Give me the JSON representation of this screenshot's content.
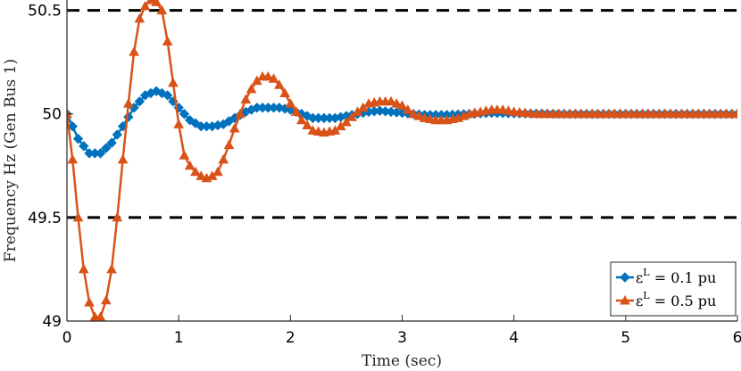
{
  "chart_data": {
    "type": "line",
    "title": "",
    "xlabel": "Time (sec)",
    "ylabel": "Frequency Hz (Gen Bus 1)",
    "xlim": [
      0,
      6
    ],
    "ylim": [
      49,
      50.55
    ],
    "xticks": [
      0,
      1,
      2,
      3,
      4,
      5,
      6
    ],
    "xtick_labels": [
      "0",
      "1",
      "2",
      "3",
      "4",
      "5",
      "6"
    ],
    "yticks": [
      49,
      49.5,
      50,
      50.5
    ],
    "ytick_labels": [
      "49",
      "49.5",
      "50",
      "50.5"
    ],
    "reference_lines": [
      {
        "y": 50.5,
        "style": "dashed",
        "color": "#000000"
      },
      {
        "y": 49.5,
        "style": "dashed",
        "color": "#000000"
      }
    ],
    "legend_location": "bottom-right",
    "series": [
      {
        "name": "eL = 0.1 pu",
        "legend_main": "ε",
        "legend_sup": "L",
        "legend_rest": " = 0.1 pu",
        "color": "#0072BD",
        "marker": "diamond",
        "x": [
          0,
          0.1,
          0.2,
          0.3,
          0.4,
          0.5,
          0.6,
          0.7,
          0.8,
          0.9,
          1.0,
          1.1,
          1.2,
          1.3,
          1.4,
          1.5,
          1.6,
          1.7,
          1.8,
          1.9,
          2.0,
          2.1,
          2.2,
          2.3,
          2.4,
          2.5,
          2.6,
          2.7,
          2.8,
          2.9,
          3.0,
          3.2,
          3.4,
          3.6,
          3.8,
          4.0,
          4.5,
          5.0,
          5.5,
          6.0
        ],
        "y": [
          50,
          49.88,
          49.81,
          49.81,
          49.86,
          49.94,
          50.03,
          50.09,
          50.11,
          50.09,
          50.03,
          49.97,
          49.94,
          49.94,
          49.95,
          49.98,
          50.01,
          50.03,
          50.03,
          50.03,
          50.02,
          50.0,
          49.98,
          49.98,
          49.98,
          49.99,
          50.0,
          50.01,
          50.015,
          50.01,
          50.005,
          49.995,
          49.995,
          50.0,
          50.005,
          50.003,
          50.0,
          50.0,
          50.0,
          50.0
        ]
      },
      {
        "name": "eL = 0.5 pu",
        "legend_main": "ε",
        "legend_sup": "L",
        "legend_rest": " = 0.5 pu",
        "color": "#D95319",
        "marker": "triangle",
        "x": [
          0,
          0.05,
          0.1,
          0.15,
          0.2,
          0.25,
          0.3,
          0.35,
          0.4,
          0.45,
          0.5,
          0.55,
          0.6,
          0.65,
          0.7,
          0.75,
          0.8,
          0.85,
          0.9,
          0.95,
          1.0,
          1.05,
          1.1,
          1.15,
          1.2,
          1.25,
          1.3,
          1.35,
          1.4,
          1.45,
          1.5,
          1.55,
          1.6,
          1.65,
          1.7,
          1.75,
          1.8,
          1.85,
          1.9,
          1.95,
          2.0,
          2.1,
          2.2,
          2.3,
          2.4,
          2.5,
          2.6,
          2.7,
          2.8,
          2.9,
          3.0,
          3.1,
          3.2,
          3.3,
          3.4,
          3.5,
          3.6,
          3.7,
          3.8,
          3.9,
          4.0,
          4.2,
          4.4,
          4.6,
          5.0,
          5.5,
          6.0
        ],
        "y": [
          50,
          49.78,
          49.5,
          49.25,
          49.09,
          49.02,
          49.02,
          49.1,
          49.25,
          49.5,
          49.78,
          50.05,
          50.3,
          50.46,
          50.52,
          50.55,
          50.54,
          50.5,
          50.35,
          50.15,
          49.95,
          49.8,
          49.75,
          49.72,
          49.7,
          49.69,
          49.7,
          49.72,
          49.78,
          49.85,
          49.93,
          50.0,
          50.07,
          50.12,
          50.16,
          50.18,
          50.18,
          50.17,
          50.14,
          50.1,
          50.05,
          49.97,
          49.92,
          49.91,
          49.92,
          49.96,
          50.01,
          50.05,
          50.06,
          50.06,
          50.04,
          50.0,
          49.98,
          49.97,
          49.97,
          49.98,
          50.0,
          50.01,
          50.02,
          50.02,
          50.01,
          50.0,
          50.0,
          50.0,
          50.0,
          50.0,
          50.0
        ]
      }
    ]
  }
}
